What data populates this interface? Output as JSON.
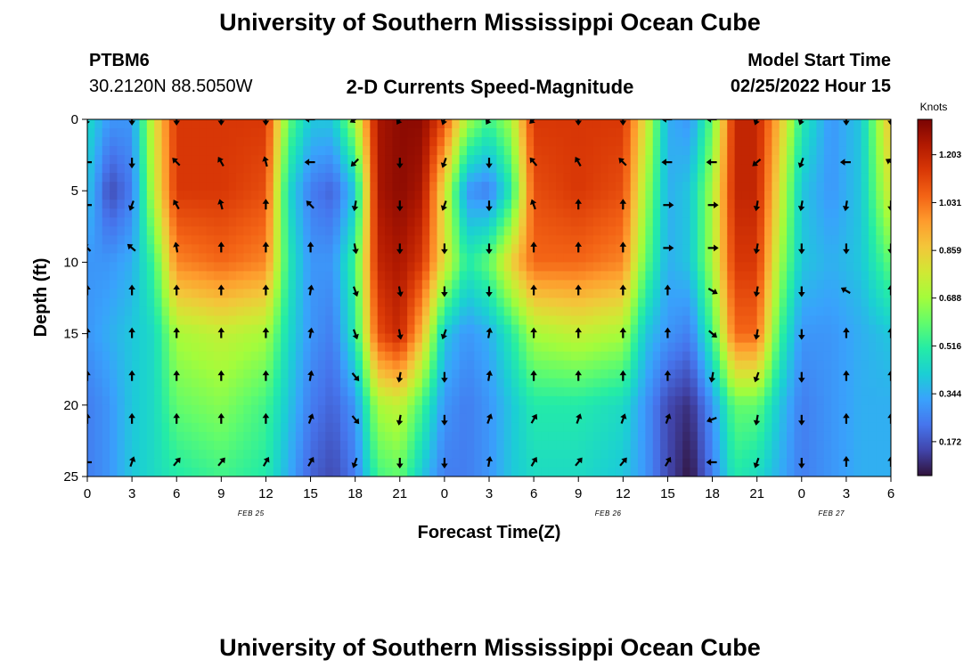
{
  "header": {
    "title": "University of Southern Mississippi Ocean Cube",
    "station_id": "PTBM6",
    "coords": "30.2120N  88.5050W",
    "product": "2-D Currents Speed-Magnitude",
    "model_label": "Model Start Time",
    "model_time": "02/25/2022 Hour 15"
  },
  "footer": {
    "title": "University of Southern Mississippi Ocean Cube"
  },
  "chart_data": {
    "type": "heatmap",
    "title": "2-D Currents Speed-Magnitude",
    "xlabel": "Forecast Time(Z)",
    "ylabel": "Depth (ft)",
    "x_ticks": [
      "0",
      "3",
      "6",
      "9",
      "12",
      "15",
      "18",
      "21",
      "0",
      "3",
      "6",
      "9",
      "12",
      "15",
      "18",
      "21",
      "0",
      "3",
      "6"
    ],
    "y_ticks": [
      "0",
      "5",
      "10",
      "15",
      "20",
      "25"
    ],
    "date_labels": [
      {
        "text": "FEB 25",
        "hour": 11
      },
      {
        "text": "FEB 26",
        "hour": 35
      },
      {
        "text": "FEB 27",
        "hour": 50
      }
    ],
    "xlim": [
      0,
      54
    ],
    "ylim": [
      0,
      25
    ],
    "colorbar": {
      "unit": "Knots",
      "ticks": [
        "1.203",
        "1.031",
        "0.859",
        "0.688",
        "0.516",
        "0.344",
        "0.172"
      ],
      "range": [
        0.05,
        1.33
      ]
    },
    "colors": {
      "scale": [
        "#30123b",
        "#4145ab",
        "#4675ed",
        "#39a2fc",
        "#1bcfd4",
        "#24eca6",
        "#61fc6c",
        "#a4fc3b",
        "#d1e834",
        "#f3c63a",
        "#fe9b2d",
        "#f36315",
        "#d93806",
        "#b11901",
        "#7a0403"
      ]
    },
    "speed_grid": {
      "depths_ft": [
        0,
        5,
        10,
        15,
        20,
        25
      ],
      "hours": [
        0,
        1.5,
        3,
        4.5,
        6,
        9,
        12,
        13.5,
        15,
        16.5,
        18,
        19.5,
        21,
        22.5,
        24,
        25.5,
        27,
        28.5,
        30,
        33,
        36,
        37.5,
        39,
        40.5,
        42,
        43.5,
        45,
        46.5,
        48,
        50,
        52,
        54
      ],
      "values": [
        [
          0.45,
          0.3,
          0.3,
          0.8,
          1.15,
          1.15,
          1.15,
          0.6,
          0.4,
          0.4,
          0.7,
          1.25,
          1.3,
          1.3,
          1.1,
          0.7,
          0.55,
          0.7,
          1.15,
          1.15,
          1.15,
          0.8,
          0.35,
          0.3,
          0.6,
          1.2,
          1.2,
          0.9,
          0.5,
          0.3,
          0.4,
          0.9
        ],
        [
          0.4,
          0.15,
          0.25,
          0.75,
          1.15,
          1.15,
          1.1,
          0.45,
          0.25,
          0.2,
          0.4,
          1.25,
          1.3,
          1.25,
          0.8,
          0.3,
          0.25,
          0.5,
          1.1,
          1.15,
          1.1,
          0.7,
          0.35,
          0.4,
          0.7,
          1.2,
          1.2,
          0.8,
          0.4,
          0.3,
          0.4,
          0.8
        ],
        [
          0.3,
          0.3,
          0.35,
          0.55,
          1.0,
          1.05,
          1.0,
          0.5,
          0.3,
          0.3,
          0.55,
          1.2,
          1.25,
          1.15,
          0.8,
          0.5,
          0.6,
          0.85,
          1.05,
          1.05,
          1.0,
          0.6,
          0.35,
          0.4,
          0.7,
          1.15,
          1.15,
          0.7,
          0.4,
          0.35,
          0.4,
          0.6
        ],
        [
          0.3,
          0.35,
          0.4,
          0.45,
          0.7,
          0.75,
          0.7,
          0.45,
          0.3,
          0.25,
          0.5,
          1.1,
          1.2,
          0.9,
          0.4,
          0.3,
          0.35,
          0.5,
          0.7,
          0.75,
          0.7,
          0.4,
          0.3,
          0.25,
          0.55,
          1.05,
          1.05,
          0.55,
          0.3,
          0.3,
          0.35,
          0.4
        ],
        [
          0.25,
          0.3,
          0.4,
          0.45,
          0.6,
          0.65,
          0.55,
          0.4,
          0.25,
          0.2,
          0.3,
          0.7,
          0.75,
          0.55,
          0.3,
          0.25,
          0.3,
          0.4,
          0.5,
          0.5,
          0.45,
          0.3,
          0.15,
          0.1,
          0.3,
          0.6,
          0.6,
          0.4,
          0.25,
          0.3,
          0.35,
          0.35
        ],
        [
          0.25,
          0.3,
          0.4,
          0.45,
          0.5,
          0.55,
          0.5,
          0.35,
          0.2,
          0.15,
          0.25,
          0.55,
          0.6,
          0.4,
          0.25,
          0.25,
          0.3,
          0.4,
          0.45,
          0.45,
          0.4,
          0.3,
          0.15,
          0.05,
          0.25,
          0.5,
          0.45,
          0.35,
          0.25,
          0.3,
          0.35,
          0.35
        ]
      ]
    },
    "vectors": {
      "hours": [
        0,
        3,
        6,
        9,
        12,
        15,
        18,
        21,
        24,
        27,
        30,
        33,
        36,
        39,
        42,
        45,
        48,
        51,
        54
      ],
      "depths_ft": [
        0,
        3,
        6,
        9,
        12,
        15,
        18,
        21,
        24
      ],
      "angles_deg": [
        [
          200,
          180,
          180,
          180,
          180,
          270,
          240,
          210,
          200,
          210,
          225,
          180,
          180,
          270,
          270,
          200,
          200,
          180,
          180
        ],
        [
          270,
          180,
          315,
          330,
          345,
          270,
          225,
          180,
          200,
          180,
          320,
          330,
          315,
          270,
          270,
          230,
          200,
          270,
          300
        ],
        [
          270,
          200,
          330,
          345,
          0,
          315,
          190,
          180,
          200,
          180,
          340,
          0,
          0,
          90,
          90,
          190,
          190,
          190,
          180
        ],
        [
          315,
          310,
          350,
          0,
          0,
          0,
          170,
          180,
          180,
          180,
          0,
          0,
          0,
          90,
          90,
          190,
          180,
          180,
          180
        ],
        [
          0,
          0,
          0,
          0,
          0,
          10,
          160,
          170,
          180,
          180,
          0,
          0,
          0,
          0,
          120,
          190,
          180,
          300,
          0
        ],
        [
          0,
          0,
          0,
          0,
          0,
          10,
          160,
          170,
          200,
          10,
          0,
          0,
          0,
          0,
          130,
          190,
          180,
          0,
          0
        ],
        [
          0,
          0,
          0,
          0,
          0,
          10,
          140,
          190,
          180,
          10,
          0,
          0,
          0,
          0,
          190,
          200,
          180,
          0,
          0
        ],
        [
          0,
          0,
          0,
          0,
          0,
          20,
          140,
          190,
          180,
          20,
          30,
          20,
          20,
          20,
          250,
          190,
          180,
          0,
          0
        ],
        [
          270,
          20,
          40,
          40,
          30,
          30,
          200,
          180,
          180,
          10,
          30,
          40,
          40,
          30,
          270,
          200,
          180,
          0,
          0
        ]
      ]
    }
  }
}
